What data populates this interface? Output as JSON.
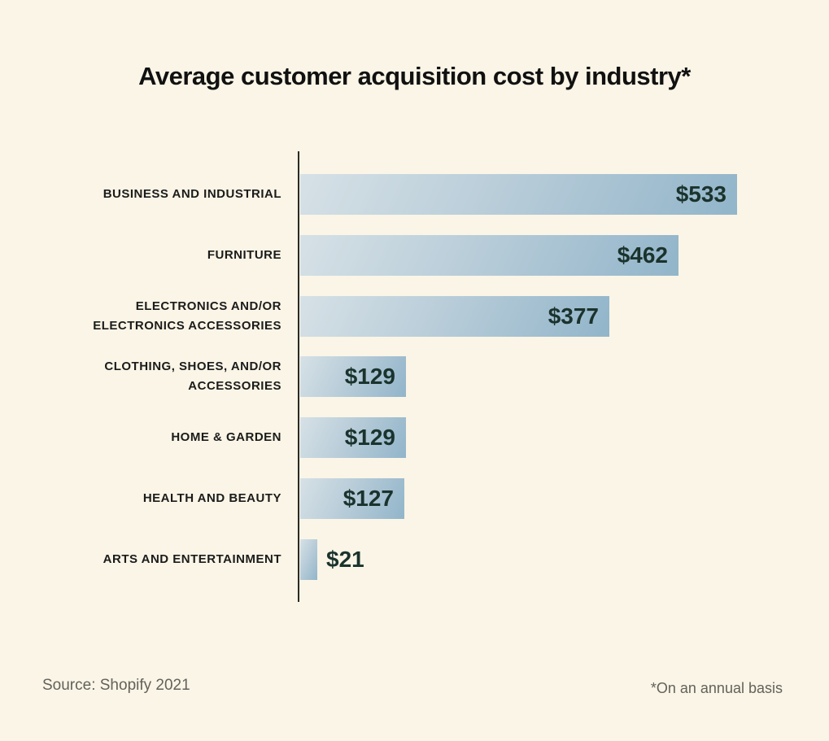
{
  "title": "Average customer acquisition cost by industry*",
  "footer": {
    "source": "Source: Shopify 2021",
    "footnote": "*On an annual basis"
  },
  "colors": {
    "background": "#faf5e6",
    "bar_gradient_start": "#d6e1e6",
    "bar_gradient_end": "#92b5ca",
    "axis_line": "#2b2a26",
    "title_text": "#111111",
    "category_label_text": "#1b1b1b",
    "value_label_text": "#1b332d",
    "footer_text": "#63625a"
  },
  "chart_data": {
    "type": "bar",
    "orientation": "horizontal",
    "title": "Average customer acquisition cost by industry*",
    "unit": "USD",
    "xlabel": "",
    "ylabel": "",
    "xlim": [
      0,
      545
    ],
    "grid": false,
    "legend": "none",
    "categories": [
      "BUSINESS AND INDUSTRIAL",
      "FURNITURE",
      "ELECTRONICS AND/OR\nELECTRONICS ACCESSORIES",
      "CLOTHING, SHOES, AND/OR\nACCESSORIES",
      "HOME & GARDEN",
      "HEALTH AND BEAUTY",
      "ARTS AND ENTERTAINMENT"
    ],
    "values": [
      533,
      462,
      377,
      129,
      129,
      127,
      21
    ],
    "value_labels": [
      "$533",
      "$462",
      "$377",
      "$129",
      "$129",
      "$127",
      "$21"
    ],
    "source": "Source: Shopify 2021",
    "footnote": "*On an annual basis"
  }
}
